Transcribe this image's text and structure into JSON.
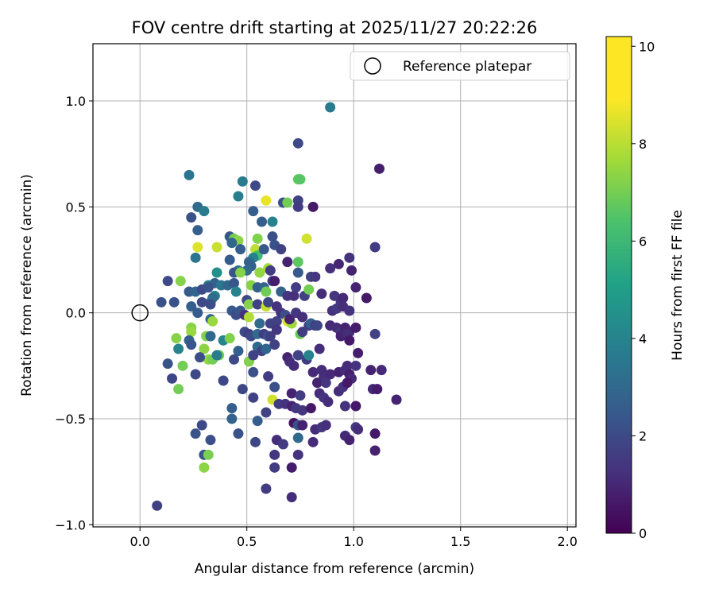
{
  "chart_data": {
    "type": "scatter",
    "title": "FOV centre drift starting at 2025/11/27 20:22:26",
    "xlabel": "Angular distance from reference (arcmin)",
    "ylabel": "Rotation from reference (arcmin)",
    "xlim": [
      -0.22,
      2.04
    ],
    "ylim": [
      -1.01,
      1.27
    ],
    "xticks": [
      0.0,
      0.5,
      1.0,
      1.5,
      2.0
    ],
    "xtick_labels": [
      "0.0",
      "0.5",
      "1.0",
      "1.5",
      "2.0"
    ],
    "yticks": [
      -1.0,
      -0.5,
      0.0,
      0.5,
      1.0
    ],
    "ytick_labels": [
      "−1.0",
      "−0.5",
      "0.0",
      "0.5",
      "1.0"
    ],
    "grid": true,
    "legend": {
      "position": "top-right",
      "label": "Reference platepar"
    },
    "reference_point": {
      "x": 0.0,
      "y": 0.0
    },
    "colorbar": {
      "label": "Hours from first FF file",
      "range": [
        0,
        10.2
      ],
      "ticks": [
        0,
        2,
        4,
        6,
        8,
        10
      ],
      "tick_labels": [
        "0",
        "2",
        "4",
        "6",
        "8",
        "10"
      ],
      "colormap": "viridis"
    },
    "points": [
      [
        0.89,
        0.97,
        4.2
      ],
      [
        0.74,
        0.8,
        2.3
      ],
      [
        1.12,
        0.68,
        0.9
      ],
      [
        0.23,
        0.65,
        4.0
      ],
      [
        0.48,
        0.62,
        4.2
      ],
      [
        0.74,
        0.63,
        7.7
      ],
      [
        0.75,
        0.63,
        7.5
      ],
      [
        0.54,
        0.6,
        2.3
      ],
      [
        0.46,
        0.55,
        4.3
      ],
      [
        0.74,
        0.53,
        2.0
      ],
      [
        0.59,
        0.53,
        9.9
      ],
      [
        0.27,
        0.5,
        3.5
      ],
      [
        0.3,
        0.48,
        4.2
      ],
      [
        0.53,
        0.48,
        3.0
      ],
      [
        0.67,
        0.52,
        2.5
      ],
      [
        0.69,
        0.52,
        8.0
      ],
      [
        0.74,
        0.5,
        1.8
      ],
      [
        0.81,
        0.5,
        0.7
      ],
      [
        0.62,
        0.43,
        4.5
      ],
      [
        0.57,
        0.43,
        3.0
      ],
      [
        0.24,
        0.45,
        2.6
      ],
      [
        0.27,
        0.39,
        3.0
      ],
      [
        0.27,
        0.31,
        9.7
      ],
      [
        0.42,
        0.36,
        2.7
      ],
      [
        0.43,
        0.34,
        2.8
      ],
      [
        0.44,
        0.35,
        8.0
      ],
      [
        0.46,
        0.34,
        8.4
      ],
      [
        0.55,
        0.35,
        8.2
      ],
      [
        0.62,
        0.36,
        2.5
      ],
      [
        0.78,
        0.35,
        9.5
      ],
      [
        0.36,
        0.31,
        9.4
      ],
      [
        0.43,
        0.33,
        3.3
      ],
      [
        0.47,
        0.3,
        3.0
      ],
      [
        0.54,
        0.3,
        9.2
      ],
      [
        0.55,
        0.27,
        7.0
      ],
      [
        0.53,
        0.26,
        4.5
      ],
      [
        0.58,
        0.3,
        2.8
      ],
      [
        0.63,
        0.32,
        2.6
      ],
      [
        0.66,
        0.3,
        2.0
      ],
      [
        0.69,
        0.24,
        1.0
      ],
      [
        0.74,
        0.24,
        7.6
      ],
      [
        0.26,
        0.26,
        4.0
      ],
      [
        0.42,
        0.25,
        2.9
      ],
      [
        0.51,
        0.24,
        3.3
      ],
      [
        0.52,
        0.22,
        3.1
      ],
      [
        0.5,
        0.2,
        3.5
      ],
      [
        0.46,
        0.2,
        3.8
      ],
      [
        0.44,
        0.19,
        2.7
      ],
      [
        0.47,
        0.19,
        8.3
      ],
      [
        0.56,
        0.19,
        8.5
      ],
      [
        0.6,
        0.21,
        8.8
      ],
      [
        0.61,
        0.2,
        1.8
      ],
      [
        0.74,
        0.19,
        2.8
      ],
      [
        0.8,
        0.17,
        2.0
      ],
      [
        0.89,
        0.21,
        1.4
      ],
      [
        0.93,
        0.23,
        1.1
      ],
      [
        0.98,
        0.26,
        1.5
      ],
      [
        1.1,
        0.31,
        1.8
      ],
      [
        0.36,
        0.19,
        5.1
      ],
      [
        0.32,
        0.13,
        4.6
      ],
      [
        0.35,
        0.14,
        3.1
      ],
      [
        0.38,
        0.13,
        4.0
      ],
      [
        0.41,
        0.13,
        3.4
      ],
      [
        0.44,
        0.14,
        2.7
      ],
      [
        0.45,
        0.1,
        4.5
      ],
      [
        0.52,
        0.13,
        8.3
      ],
      [
        0.55,
        0.12,
        3.0
      ],
      [
        0.58,
        0.12,
        3.3
      ],
      [
        0.59,
        0.1,
        7.9
      ],
      [
        0.62,
        0.15,
        1.8
      ],
      [
        0.63,
        0.15,
        0.9
      ],
      [
        0.66,
        0.1,
        3.2
      ],
      [
        0.69,
        0.08,
        1.6
      ],
      [
        0.72,
        0.08,
        1.4
      ],
      [
        0.73,
        0.12,
        1.8
      ],
      [
        0.77,
        0.08,
        2.0
      ],
      [
        0.79,
        0.11,
        8.0
      ],
      [
        0.82,
        0.17,
        1.6
      ],
      [
        0.85,
        0.09,
        1.3
      ],
      [
        0.91,
        0.08,
        1.6
      ],
      [
        0.94,
        0.05,
        1.6
      ],
      [
        0.95,
        0.07,
        1.2
      ],
      [
        0.99,
        0.2,
        1.0
      ],
      [
        1.01,
        0.12,
        1.0
      ],
      [
        1.06,
        0.07,
        0.7
      ],
      [
        0.19,
        0.15,
        8.3
      ],
      [
        0.13,
        0.15,
        2.3
      ],
      [
        0.1,
        0.05,
        2.6
      ],
      [
        0.16,
        0.05,
        2.6
      ],
      [
        0.23,
        0.1,
        2.8
      ],
      [
        0.26,
        0.1,
        3.3
      ],
      [
        0.29,
        0.11,
        2.3
      ],
      [
        0.32,
        0.12,
        2.6
      ],
      [
        0.35,
        0.08,
        4.5
      ],
      [
        0.34,
        0.07,
        3.5
      ],
      [
        0.33,
        0.05,
        3.8
      ],
      [
        0.33,
        0.04,
        2.4
      ],
      [
        0.29,
        0.05,
        2.3
      ],
      [
        0.24,
        0.03,
        3.0
      ],
      [
        0.27,
        0.0,
        2.9
      ],
      [
        0.33,
        -0.03,
        3.3
      ],
      [
        0.34,
        -0.04,
        8.6
      ],
      [
        0.43,
        0.01,
        2.8
      ],
      [
        0.45,
        -0.01,
        2.4
      ],
      [
        0.47,
        0.01,
        2.7
      ],
      [
        0.49,
        -0.01,
        1.5
      ],
      [
        0.5,
        0.06,
        2.3
      ],
      [
        0.51,
        0.04,
        8.3
      ],
      [
        0.51,
        -0.02,
        9.0
      ],
      [
        0.55,
        0.04,
        2.0
      ],
      [
        0.59,
        0.03,
        9.3
      ],
      [
        0.6,
        0.05,
        2.2
      ],
      [
        0.64,
        0.03,
        1.5
      ],
      [
        0.64,
        -0.04,
        2.0
      ],
      [
        0.66,
        0.0,
        1.5
      ],
      [
        0.68,
        -0.01,
        2.5
      ],
      [
        0.69,
        -0.04,
        9.7
      ],
      [
        0.71,
        -0.05,
        8.7
      ],
      [
        0.7,
        -0.03,
        1.0
      ],
      [
        0.73,
        0.0,
        1.6
      ],
      [
        0.76,
        -0.02,
        1.4
      ],
      [
        0.79,
        -0.06,
        2.0
      ],
      [
        0.8,
        -0.05,
        3.1
      ],
      [
        0.82,
        -0.06,
        1.8
      ],
      [
        0.89,
        -0.06,
        1.2
      ],
      [
        0.92,
        -0.07,
        1.3
      ],
      [
        0.94,
        -0.09,
        1.6
      ],
      [
        0.96,
        -0.07,
        1.0
      ],
      [
        0.98,
        -0.09,
        1.1
      ],
      [
        1.01,
        -0.07,
        0.8
      ],
      [
        0.9,
        0.01,
        1.4
      ],
      [
        0.92,
        0.02,
        1.7
      ],
      [
        0.95,
        0.03,
        1.3
      ],
      [
        0.98,
        0.01,
        1.5
      ],
      [
        1.1,
        -0.1,
        2.0
      ],
      [
        0.24,
        -0.07,
        8.3
      ],
      [
        0.24,
        -0.09,
        8.6
      ],
      [
        0.17,
        -0.12,
        8.3
      ],
      [
        0.18,
        -0.17,
        4.6
      ],
      [
        0.23,
        -0.13,
        3.1
      ],
      [
        0.24,
        -0.15,
        2.7
      ],
      [
        0.31,
        -0.11,
        8.2
      ],
      [
        0.33,
        -0.11,
        3.4
      ],
      [
        0.39,
        -0.13,
        4.6
      ],
      [
        0.42,
        -0.12,
        8.2
      ],
      [
        0.49,
        -0.09,
        2.3
      ],
      [
        0.51,
        -0.1,
        1.8
      ],
      [
        0.52,
        -0.11,
        2.3
      ],
      [
        0.55,
        -0.1,
        3.5
      ],
      [
        0.58,
        -0.1,
        1.8
      ],
      [
        0.6,
        -0.11,
        2.7
      ],
      [
        0.61,
        -0.11,
        1.9
      ],
      [
        0.56,
        -0.05,
        3.5
      ],
      [
        0.61,
        -0.05,
        2.0
      ],
      [
        0.64,
        -0.08,
        1.6
      ],
      [
        0.75,
        -0.1,
        7.8
      ],
      [
        0.76,
        -0.09,
        1.8
      ],
      [
        0.83,
        -0.06,
        2.2
      ],
      [
        0.84,
        -0.17,
        1.3
      ],
      [
        0.94,
        -0.11,
        1.0
      ],
      [
        0.97,
        -0.1,
        1.3
      ],
      [
        0.98,
        -0.13,
        0.7
      ],
      [
        1.02,
        -0.19,
        0.9
      ],
      [
        0.3,
        -0.17,
        8.4
      ],
      [
        0.32,
        -0.22,
        8.5
      ],
      [
        0.34,
        -0.22,
        8.0
      ],
      [
        0.37,
        -0.2,
        8.0
      ],
      [
        0.28,
        -0.21,
        2.4
      ],
      [
        0.36,
        -0.2,
        4.2
      ],
      [
        0.46,
        -0.18,
        3.1
      ],
      [
        0.55,
        -0.16,
        3.5
      ],
      [
        0.57,
        -0.18,
        2.0
      ],
      [
        0.59,
        -0.17,
        3.3
      ],
      [
        0.63,
        -0.15,
        2.0
      ],
      [
        0.44,
        -0.22,
        2.3
      ],
      [
        0.51,
        -0.23,
        8.2
      ],
      [
        0.53,
        -0.2,
        2.0
      ],
      [
        0.74,
        -0.2,
        2.0
      ],
      [
        0.78,
        -0.22,
        1.8
      ],
      [
        0.79,
        -0.2,
        4.5
      ],
      [
        0.69,
        -0.21,
        1.0
      ],
      [
        0.7,
        -0.23,
        1.3
      ],
      [
        0.72,
        -0.25,
        1.3
      ],
      [
        0.2,
        -0.25,
        8.0
      ],
      [
        0.13,
        -0.24,
        2.6
      ],
      [
        0.15,
        -0.31,
        2.2
      ],
      [
        0.26,
        -0.29,
        2.3
      ],
      [
        0.39,
        -0.32,
        2.2
      ],
      [
        0.48,
        -0.36,
        2.2
      ],
      [
        0.53,
        -0.28,
        2.5
      ],
      [
        0.6,
        -0.3,
        1.8
      ],
      [
        0.63,
        -0.35,
        2.5
      ],
      [
        0.71,
        -0.38,
        1.0
      ],
      [
        0.75,
        -0.39,
        1.8
      ],
      [
        0.81,
        -0.28,
        1.2
      ],
      [
        0.83,
        -0.33,
        1.0
      ],
      [
        0.85,
        -0.27,
        1.3
      ],
      [
        0.86,
        -0.3,
        1.3
      ],
      [
        0.87,
        -0.33,
        1.6
      ],
      [
        0.89,
        -0.29,
        1.2
      ],
      [
        0.93,
        -0.28,
        1.0
      ],
      [
        0.96,
        -0.27,
        1.3
      ],
      [
        0.97,
        -0.25,
        1.3
      ],
      [
        0.98,
        -0.29,
        0.9
      ],
      [
        0.99,
        -0.31,
        1.2
      ],
      [
        1.01,
        -0.25,
        1.5
      ],
      [
        1.08,
        -0.27,
        1.0
      ],
      [
        1.13,
        -0.27,
        1.2
      ],
      [
        0.93,
        -0.37,
        1.3
      ],
      [
        0.95,
        -0.35,
        1.5
      ],
      [
        0.97,
        -0.33,
        0.7
      ],
      [
        1.09,
        -0.36,
        1.2
      ],
      [
        1.11,
        -0.36,
        0.8
      ],
      [
        1.2,
        -0.41,
        1.0
      ],
      [
        0.18,
        -0.36,
        8.0
      ],
      [
        0.43,
        -0.45,
        3.0
      ],
      [
        0.53,
        -0.4,
        2.0
      ],
      [
        0.62,
        -0.41,
        9.5
      ],
      [
        0.65,
        -0.43,
        1.8
      ],
      [
        0.68,
        -0.43,
        1.5
      ],
      [
        0.71,
        -0.44,
        1.0
      ],
      [
        0.73,
        -0.45,
        1.6
      ],
      [
        0.76,
        -0.46,
        1.6
      ],
      [
        0.8,
        -0.45,
        0.7
      ],
      [
        0.84,
        -0.38,
        1.3
      ],
      [
        0.86,
        -0.4,
        1.5
      ],
      [
        0.88,
        -0.42,
        1.3
      ],
      [
        0.96,
        -0.44,
        1.5
      ],
      [
        1.01,
        -0.44,
        0.7
      ],
      [
        0.43,
        -0.5,
        3.2
      ],
      [
        0.55,
        -0.51,
        3.0
      ],
      [
        0.59,
        -0.47,
        2.0
      ],
      [
        0.72,
        -0.52,
        0.6
      ],
      [
        0.74,
        -0.53,
        2.6
      ],
      [
        0.76,
        -0.53,
        1.0
      ],
      [
        0.82,
        -0.55,
        1.3
      ],
      [
        0.85,
        -0.54,
        1.6
      ],
      [
        0.87,
        -0.53,
        1.4
      ],
      [
        1.01,
        -0.54,
        1.8
      ],
      [
        1.02,
        -0.55,
        1.3
      ],
      [
        0.29,
        -0.53,
        2.3
      ],
      [
        0.26,
        -0.57,
        2.6
      ],
      [
        0.46,
        -0.57,
        2.6
      ],
      [
        0.54,
        -0.61,
        2.2
      ],
      [
        0.64,
        -0.6,
        1.3
      ],
      [
        0.67,
        -0.62,
        1.8
      ],
      [
        0.74,
        -0.59,
        3.5
      ],
      [
        0.81,
        -0.61,
        1.3
      ],
      [
        0.96,
        -0.58,
        1.2
      ],
      [
        0.98,
        -0.6,
        1.0
      ],
      [
        1.1,
        -0.57,
        0.7
      ],
      [
        0.33,
        -0.6,
        2.5
      ],
      [
        0.3,
        -0.67,
        2.6
      ],
      [
        0.32,
        -0.67,
        8.1
      ],
      [
        0.63,
        -0.67,
        1.6
      ],
      [
        0.74,
        -0.67,
        1.5
      ],
      [
        1.1,
        -0.65,
        1.0
      ],
      [
        0.3,
        -0.73,
        8.4
      ],
      [
        0.63,
        -0.73,
        1.8
      ],
      [
        0.71,
        -0.73,
        0.8
      ],
      [
        0.59,
        -0.83,
        1.8
      ],
      [
        0.71,
        -0.87,
        1.3
      ],
      [
        0.08,
        -0.91,
        2.0
      ]
    ]
  }
}
